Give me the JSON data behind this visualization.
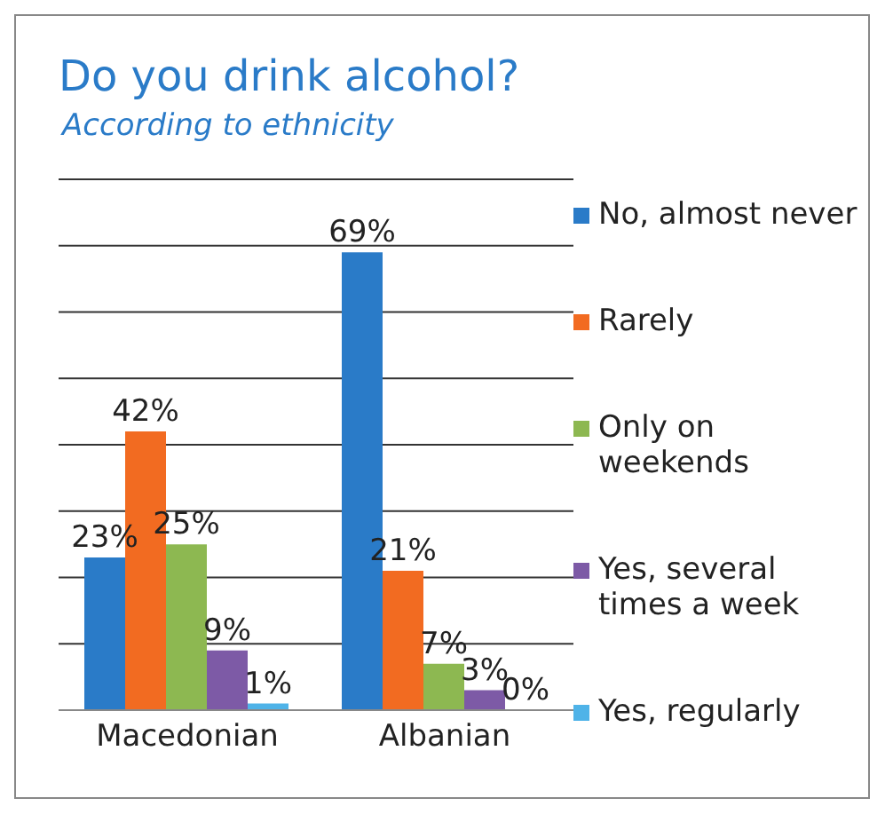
{
  "chart_data": {
    "type": "bar",
    "title": "Do you drink alcohol?",
    "subtitle": "According to ethnicity",
    "categories": [
      "Macedonian",
      "Albanian"
    ],
    "series": [
      {
        "name": "No, almost never",
        "color": "#2a7bc8",
        "values": [
          23,
          69
        ],
        "value_labels": [
          "23%",
          "69%"
        ]
      },
      {
        "name": "Rarely",
        "color": "#f26b21",
        "values": [
          42,
          21
        ],
        "value_labels": [
          "42%",
          "21%"
        ]
      },
      {
        "name": "Only on weekends",
        "color": "#8db851",
        "values": [
          25,
          7
        ],
        "value_labels": [
          "25%",
          "7%"
        ]
      },
      {
        "name": "Yes, several times a week",
        "color": "#7d5aa6",
        "values": [
          9,
          3
        ],
        "value_labels": [
          "9%",
          "3%"
        ]
      },
      {
        "name": "Yes, regularly",
        "color": "#4fb3e8",
        "values": [
          1,
          0
        ],
        "value_labels": [
          "1%",
          "0%"
        ]
      }
    ],
    "ylim": [
      0,
      80
    ],
    "grid": "y",
    "legend": "right",
    "tick_labels": "x"
  }
}
